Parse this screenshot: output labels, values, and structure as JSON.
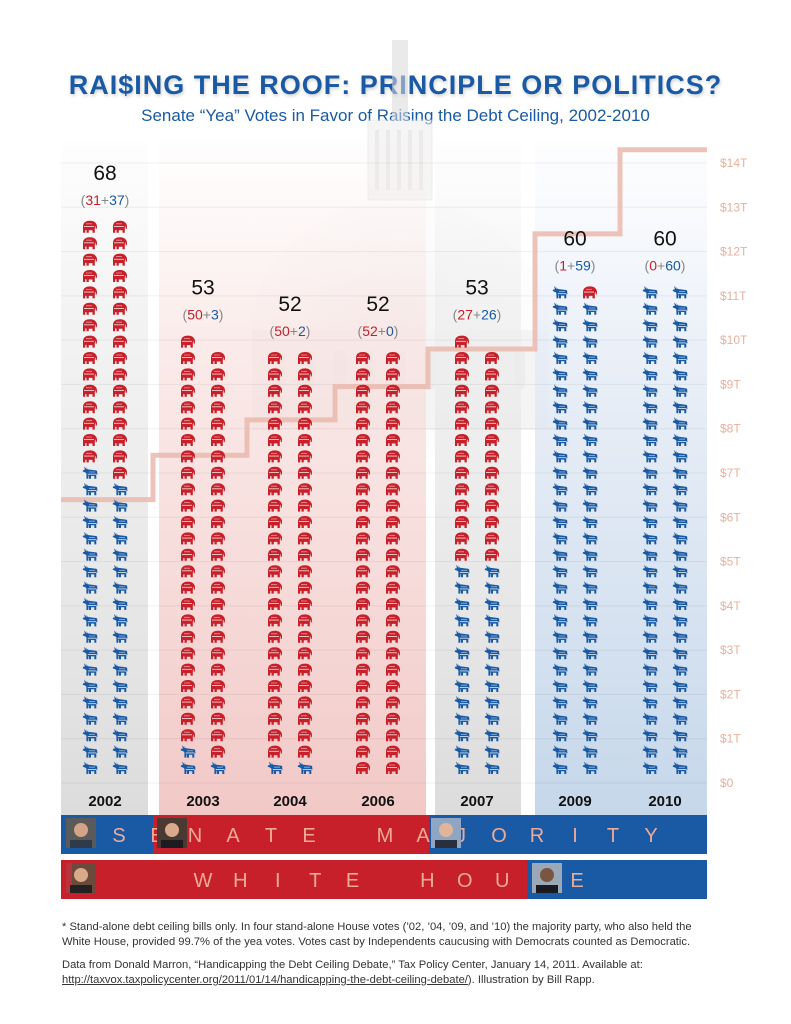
{
  "chart_data": {
    "type": "bar",
    "subtype": "pictogram-stacked-with-step-line",
    "title": "RAI$ING THE ROOF: PRINCIPLE OR POLITICS?",
    "subtitle": "Senate “Yea” Votes in Favor of Raising the Debt Ceiling, 2002-2010",
    "categories": [
      "2002",
      "2003",
      "2004",
      "2006",
      "2007",
      "2009",
      "2010"
    ],
    "series": [
      {
        "name": "Republican",
        "color": "#c8202a",
        "values": [
          31,
          50,
          50,
          52,
          27,
          1,
          0
        ]
      },
      {
        "name": "Democratic",
        "color": "#1a5aa5",
        "values": [
          37,
          3,
          2,
          0,
          26,
          59,
          60
        ]
      }
    ],
    "totals": [
      68,
      53,
      52,
      52,
      53,
      60,
      60
    ],
    "debt_ceiling_step": {
      "name": "Debt ceiling ($ trillions)",
      "color": "#eab9ad",
      "values": [
        6.4,
        7.4,
        8.2,
        8.95,
        9.8,
        12.4,
        14.3
      ]
    },
    "right_axis": {
      "ticks": [
        "$0",
        "$1T",
        "$2T",
        "$3T",
        "$4T",
        "$5T",
        "$6T",
        "$7T",
        "$8T",
        "$9T",
        "$10T",
        "$11T",
        "$12T",
        "$13T",
        "$14T"
      ],
      "range": [
        0,
        14
      ]
    },
    "panels": [
      {
        "years": [
          "2002"
        ],
        "color": "gray"
      },
      {
        "years": [
          "2003",
          "2004",
          "2006"
        ],
        "color": "red"
      },
      {
        "years": [
          "2007"
        ],
        "color": "gray"
      },
      {
        "years": [
          "2009",
          "2010"
        ],
        "color": "blue"
      }
    ],
    "icons": {
      "Republican": "elephant-icon",
      "Democratic": "donkey-icon"
    },
    "grid": true
  },
  "senate_majority": {
    "label": "SENATE MAJORITY",
    "segments": [
      {
        "party": "Democratic",
        "leader": "senate-leader-daschle-portrait"
      },
      {
        "party": "Republican",
        "leader": "senate-leader-frist-portrait"
      },
      {
        "party": "Democratic",
        "leader": "senate-leader-reid-portrait"
      }
    ]
  },
  "white_house": {
    "label": "WHITE HOUSE",
    "segments": [
      {
        "party": "Republican",
        "leader": "president-bush-portrait"
      },
      {
        "party": "Democratic",
        "leader": "president-obama-portrait"
      }
    ]
  },
  "colors": {
    "rep": "#c8202a",
    "dem": "#1a5aa5",
    "bar_text": "#ecaa98",
    "step": "#eab9ad"
  },
  "footnote": {
    "note": "* Stand-alone debt ceiling bills only. In four stand-alone House votes (’02, ’04, ’09, and ’10) the majority party, who also held the White House, provided 99.7% of the yea votes. Votes cast by Independents caucusing with Democrats counted as Democratic.",
    "source_prefix": "Data from Donald Marron, “Handicapping the Debt Ceiling Debate,” Tax Policy Center, January 14, 2011. Available at: ",
    "source_link": "http://taxvox.taxpolicycenter.org/2011/01/14/handicapping-the-debt-ceiling-debate/",
    "source_suffix": "). Illustration by Bill Rapp."
  }
}
